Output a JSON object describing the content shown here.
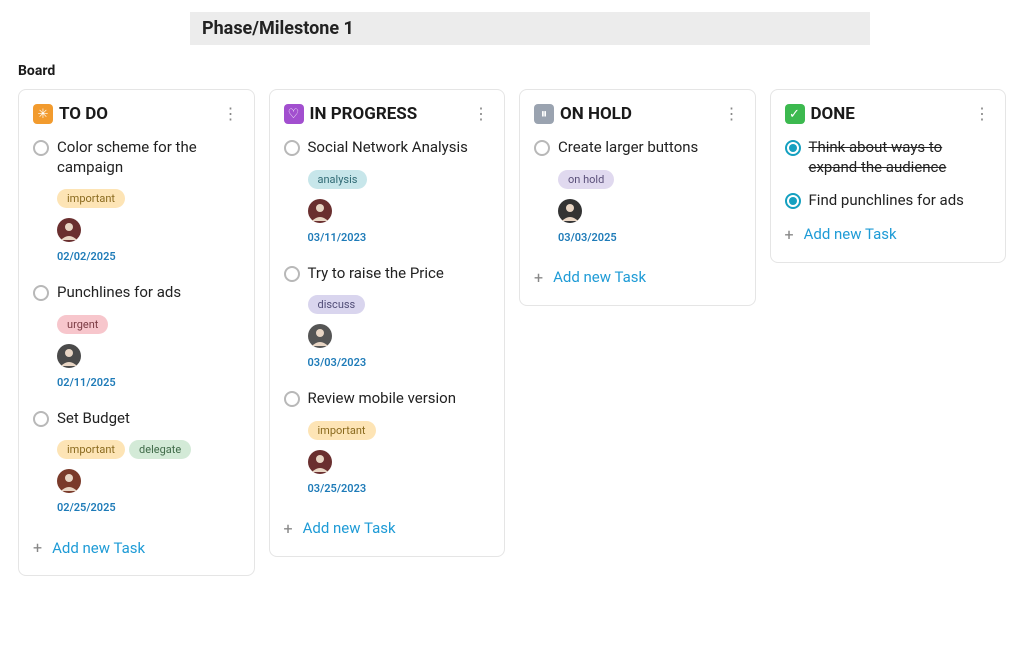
{
  "phase_title": "Phase/Milestone 1",
  "board_label": "Board",
  "add_task_label": "Add new Task",
  "colors": {
    "date_text": "#1e7bb8",
    "add_link": "#1e9bd6",
    "tag_important_bg": "#fde4b5",
    "tag_important_text": "#8a6a1e",
    "tag_urgent_bg": "#f7c6cc",
    "tag_urgent_text": "#7a3a42",
    "tag_delegate_bg": "#d3ead7",
    "tag_delegate_text": "#3f6a48",
    "tag_analysis_bg": "#c7e6ea",
    "tag_analysis_text": "#2f6a74",
    "tag_discuss_bg": "#d9d5ee",
    "tag_discuss_text": "#514d77",
    "tag_onhold_bg": "#e0d9ef",
    "tag_onhold_text": "#5a4f7a"
  },
  "columns": [
    {
      "id": "todo",
      "title": "TO DO",
      "icon_bg": "#f29b2e",
      "icon_glyph": "✳",
      "tasks": [
        {
          "title": "Color scheme for the campaign",
          "tags": [
            {
              "label": "important",
              "style": "important"
            }
          ],
          "avatar_color": "#6a2f2f",
          "date": "02/02/2025"
        },
        {
          "title": "Punchlines for ads",
          "tags": [
            {
              "label": "urgent",
              "style": "urgent"
            }
          ],
          "avatar_color": "#4a4a4a",
          "date": "02/11/2025"
        },
        {
          "title": "Set Budget",
          "tags": [
            {
              "label": "important",
              "style": "important"
            },
            {
              "label": "delegate",
              "style": "delegate"
            }
          ],
          "avatar_color": "#7a3a2a",
          "date": "02/25/2025"
        }
      ]
    },
    {
      "id": "inprogress",
      "title": "IN PROGRESS",
      "icon_bg": "#a24fcf",
      "icon_glyph": "♡",
      "tasks": [
        {
          "title": "Social Network Analysis",
          "tags": [
            {
              "label": "analysis",
              "style": "analysis"
            }
          ],
          "avatar_color": "#6a2f2f",
          "date": "03/11/2023"
        },
        {
          "title": "Try to raise the Price",
          "tags": [
            {
              "label": "discuss",
              "style": "discuss"
            }
          ],
          "avatar_color": "#555555",
          "date": "03/03/2023"
        },
        {
          "title": "Review mobile version",
          "tags": [
            {
              "label": "important",
              "style": "important"
            }
          ],
          "avatar_color": "#6a2f2f",
          "date": "03/25/2023"
        }
      ]
    },
    {
      "id": "onhold",
      "title": "ON HOLD",
      "icon_bg": "#9aa3b0",
      "icon_glyph": "⏸",
      "tasks": [
        {
          "title": "Create larger buttons",
          "tags": [
            {
              "label": "on hold",
              "style": "onhold"
            }
          ],
          "avatar_color": "#333333",
          "date": "03/03/2025"
        }
      ]
    },
    {
      "id": "done",
      "title": "DONE",
      "icon_bg": "#3cb94f",
      "icon_glyph": "✓",
      "done_tasks": [
        {
          "title": "Think about ways to expand the audience",
          "strike": true
        },
        {
          "title": "Find punchlines for ads",
          "strike": false
        }
      ]
    }
  ]
}
